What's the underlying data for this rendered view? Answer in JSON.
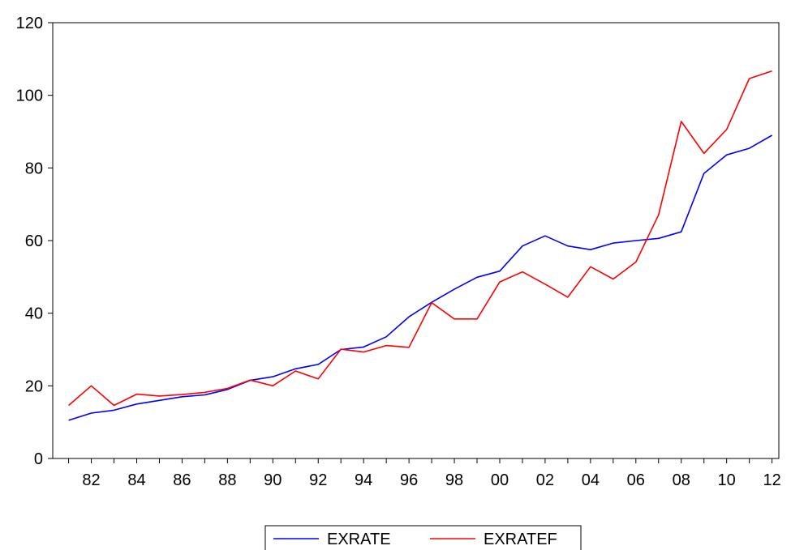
{
  "chart_data": {
    "type": "line",
    "x": [
      1981,
      1982,
      1983,
      1984,
      1985,
      1986,
      1987,
      1988,
      1989,
      1990,
      1991,
      1992,
      1993,
      1994,
      1995,
      1996,
      1997,
      1998,
      1999,
      2000,
      2001,
      2002,
      2003,
      2004,
      2005,
      2006,
      2007,
      2008,
      2009,
      2010,
      2011,
      2012
    ],
    "x_tick_values": [
      1982,
      1984,
      1986,
      1988,
      1990,
      1992,
      1994,
      1996,
      1998,
      2000,
      2002,
      2004,
      2006,
      2008,
      2010,
      2012
    ],
    "x_tick_labels": [
      "82",
      "84",
      "86",
      "88",
      "90",
      "92",
      "94",
      "96",
      "98",
      "00",
      "02",
      "04",
      "06",
      "08",
      "10",
      "12"
    ],
    "y_ticks": [
      0,
      20,
      40,
      60,
      80,
      100,
      120
    ],
    "y_tick_labels": [
      "0",
      "20",
      "40",
      "60",
      "80",
      "100",
      "120"
    ],
    "xlim": [
      1980.3,
      2012.3
    ],
    "ylim": [
      0,
      120
    ],
    "grid": false,
    "legend_position": "bottom-center",
    "series": [
      {
        "name": "EXRATE",
        "color": "#0000ff",
        "values": [
          10.5,
          12.5,
          13.3,
          15.0,
          16.0,
          17.0,
          17.5,
          19.0,
          21.5,
          22.5,
          24.7,
          25.9,
          30.0,
          30.7,
          33.5,
          39.0,
          43.0,
          46.6,
          49.9,
          51.6,
          58.5,
          61.3,
          58.5,
          57.5,
          59.3,
          60.0,
          60.6,
          62.4,
          78.5,
          83.6,
          85.4,
          89.0
        ]
      },
      {
        "name": "EXRATEF",
        "color": "#ff0000",
        "values": [
          14.6,
          20.0,
          14.6,
          17.7,
          17.2,
          17.6,
          18.2,
          19.3,
          21.6,
          20.0,
          24.1,
          21.9,
          30.1,
          29.3,
          31.1,
          30.6,
          42.9,
          38.4,
          38.4,
          48.6,
          51.4,
          48.0,
          44.4,
          52.8,
          49.4,
          54.1,
          67.1,
          92.8,
          84.0,
          90.6,
          104.6,
          106.7
        ]
      }
    ]
  }
}
